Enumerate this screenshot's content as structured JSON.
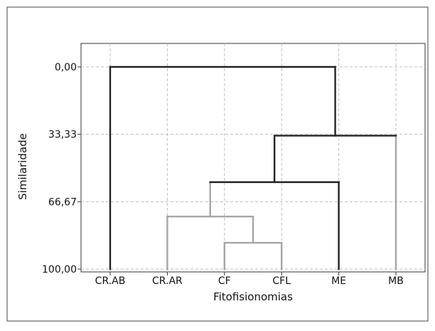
{
  "chart_data": {
    "type": "dendrogram",
    "title": "",
    "xlabel": "Fitofisionomias",
    "ylabel": "Similaridade",
    "yticks": [
      0,
      33.33,
      66.67,
      100
    ],
    "ytick_labels": [
      "0,00",
      "33,33",
      "66,67",
      "100,00"
    ],
    "ylim": [
      0,
      100
    ],
    "y_inverted": true,
    "grid": true,
    "leaves": [
      "CR.AB",
      "CR.AR",
      "CF",
      "CFL",
      "ME",
      "MB"
    ],
    "merges": [
      {
        "left": "CF",
        "right": "CFL",
        "similarity": 87,
        "color": "#a6a6a6"
      },
      {
        "left": "CR.AR",
        "right": "CF+CFL",
        "similarity": 74,
        "color": "#a6a6a6"
      },
      {
        "left": "CR.AR+CF+CFL",
        "right": "ME",
        "similarity": 57,
        "color": "#222222"
      },
      {
        "left": "CR.AR+CF+CFL+ME",
        "right": "MB",
        "similarity": 34,
        "color": "#222222"
      },
      {
        "left": "CR.AB",
        "right": "CR.AR+CF+CFL+ME+MB",
        "similarity": 0,
        "color": "#222222"
      }
    ],
    "leaf_colors": {
      "CR.AB": "#222222",
      "CR.AR": "#a6a6a6",
      "CF": "#a6a6a6",
      "CFL": "#a6a6a6",
      "ME": "#222222",
      "MB": "#a6a6a6"
    }
  }
}
